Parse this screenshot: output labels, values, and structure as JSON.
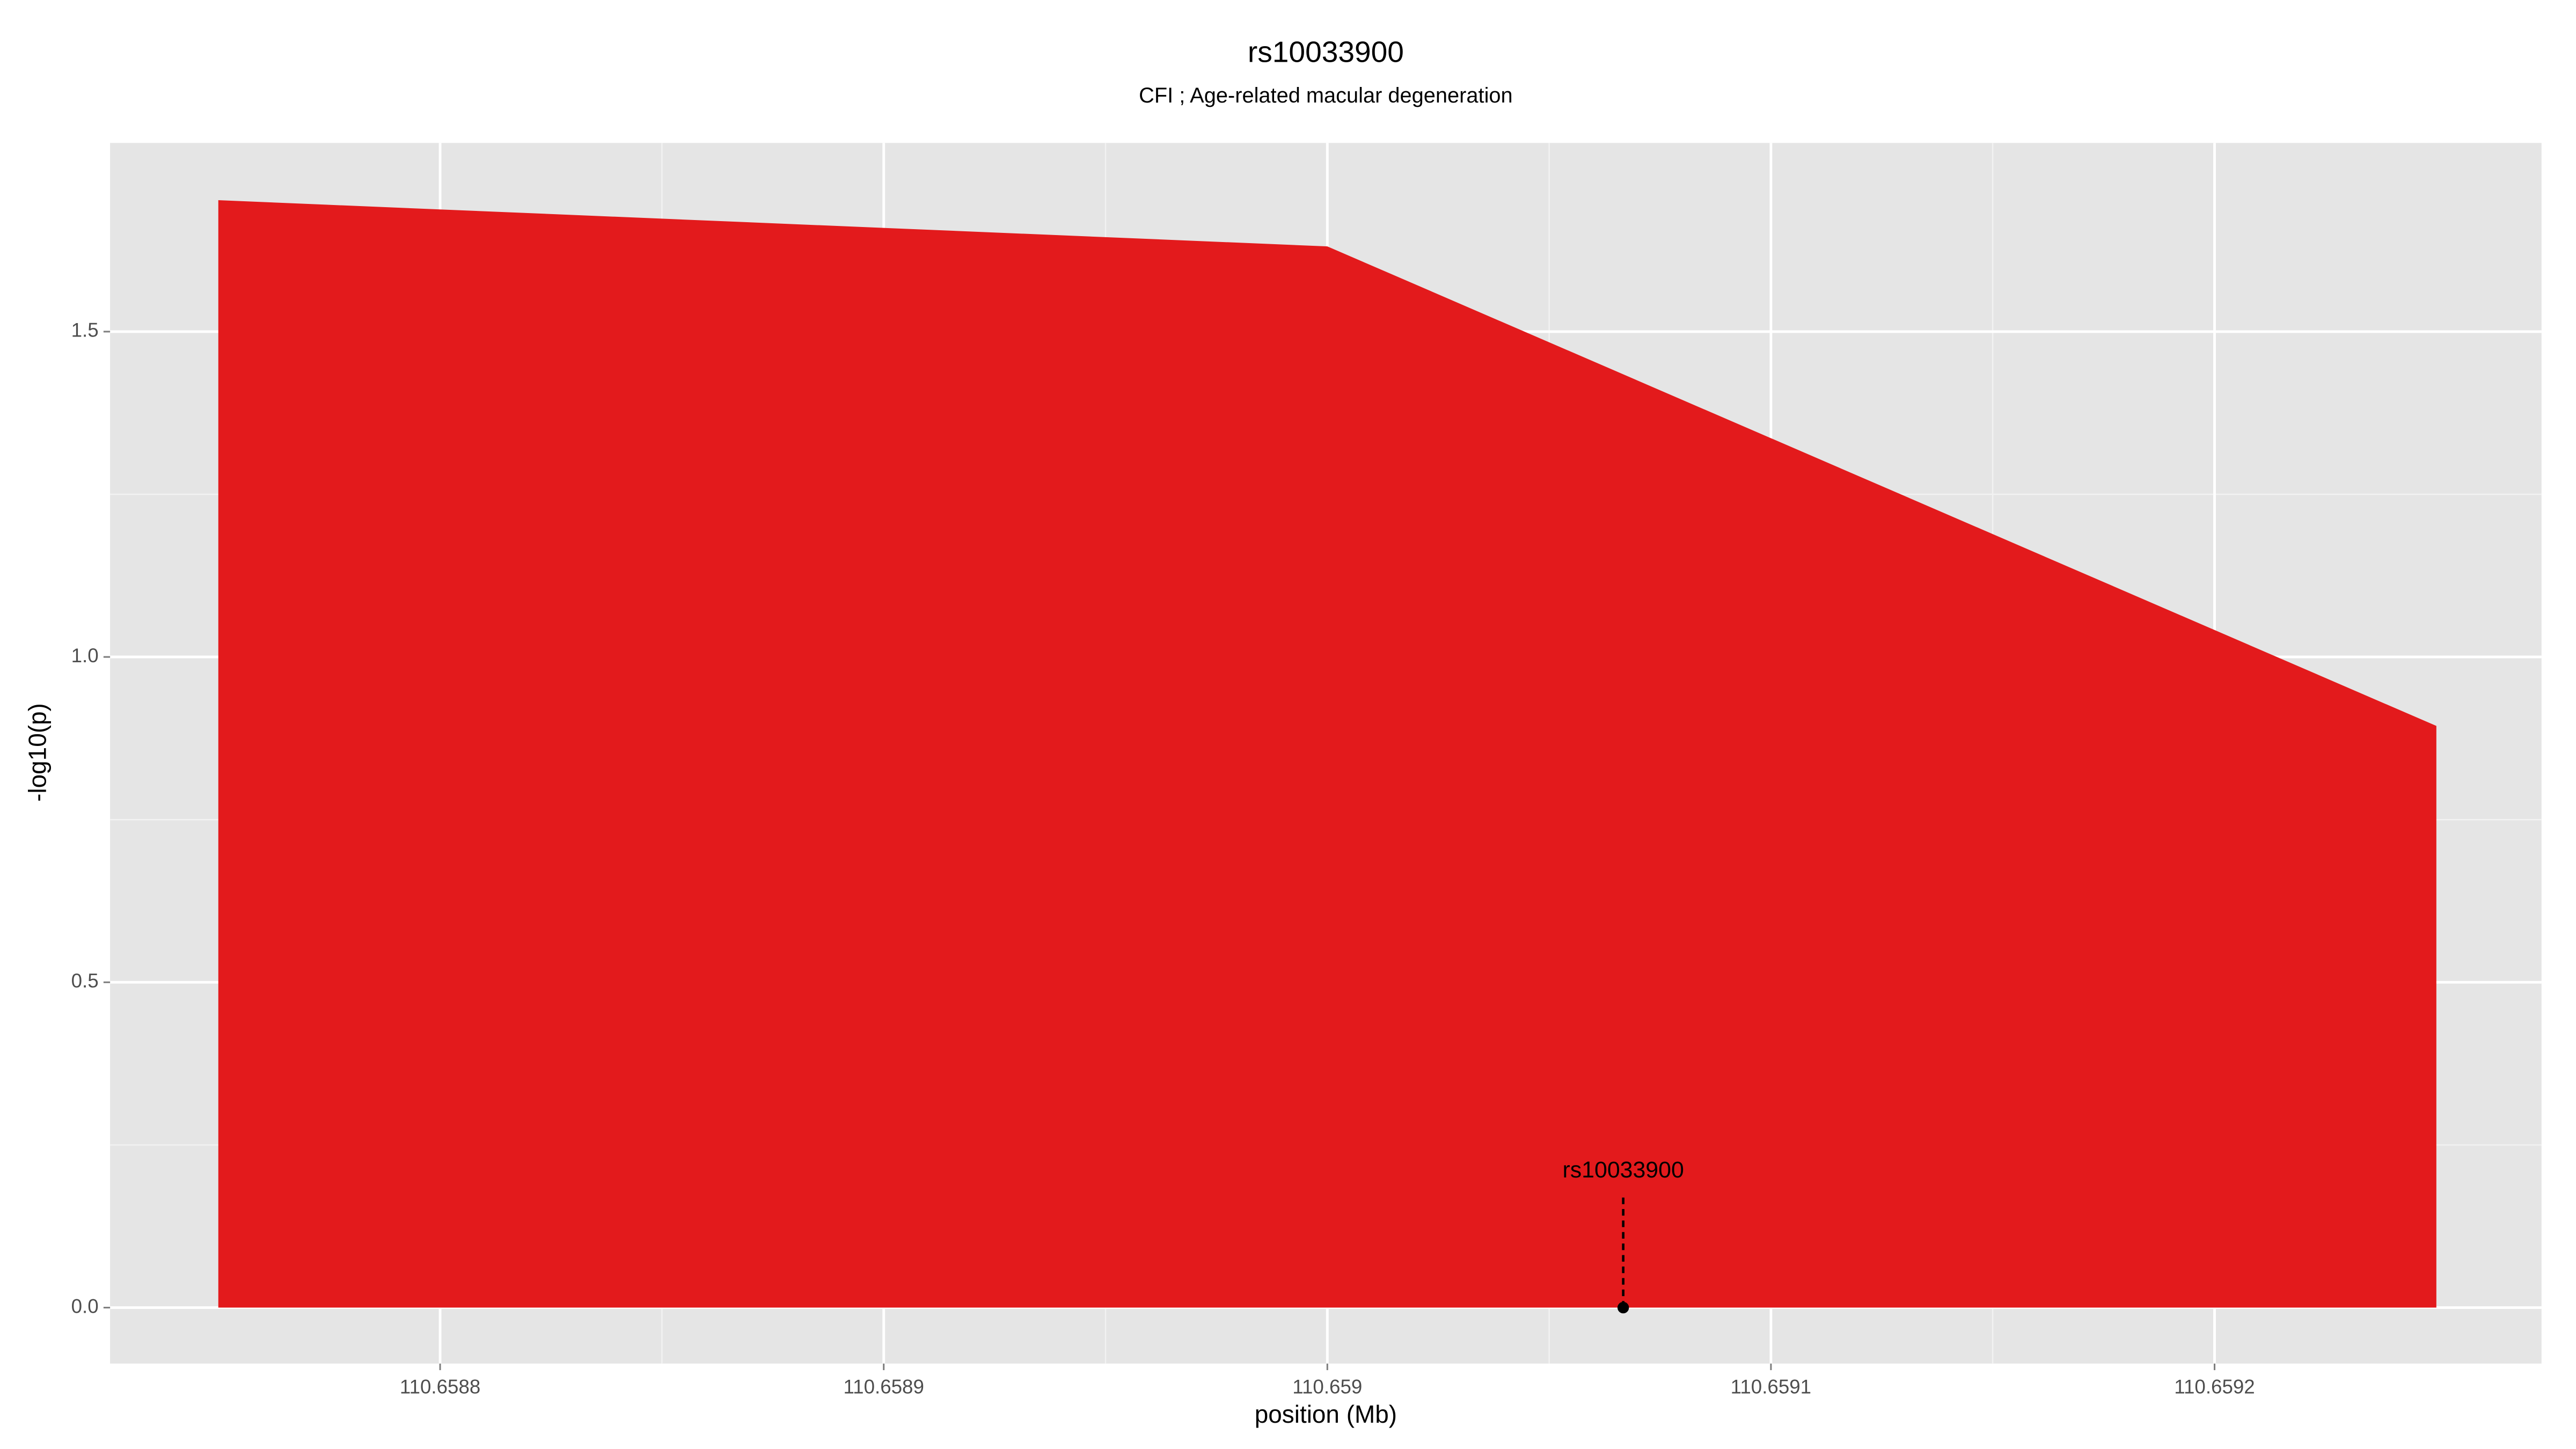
{
  "chart_data": {
    "type": "area",
    "title": "rs10033900",
    "subtitle": "CFI ; Age-related macular degeneration",
    "xlabel": "position (Mb)",
    "ylabel": "-log10(p)",
    "x": [
      110.65875,
      110.659,
      110.65925
    ],
    "values": [
      1.702,
      1.631,
      0.894
    ],
    "color": "#e31a1c",
    "xlim": [
      110.6587256,
      110.6592737
    ],
    "ylim": [
      -0.086,
      1.79
    ],
    "xticks": [
      110.6588,
      110.6589,
      110.659,
      110.6591,
      110.6592
    ],
    "yticks": [
      {
        "value": 0,
        "label": "0.0"
      },
      0.5,
      {
        "value": 1,
        "label": "1.0"
      },
      1.5
    ],
    "grid": true,
    "annotation": {
      "label": "rs10033900",
      "x": 110.6590667,
      "y": 0
    }
  }
}
